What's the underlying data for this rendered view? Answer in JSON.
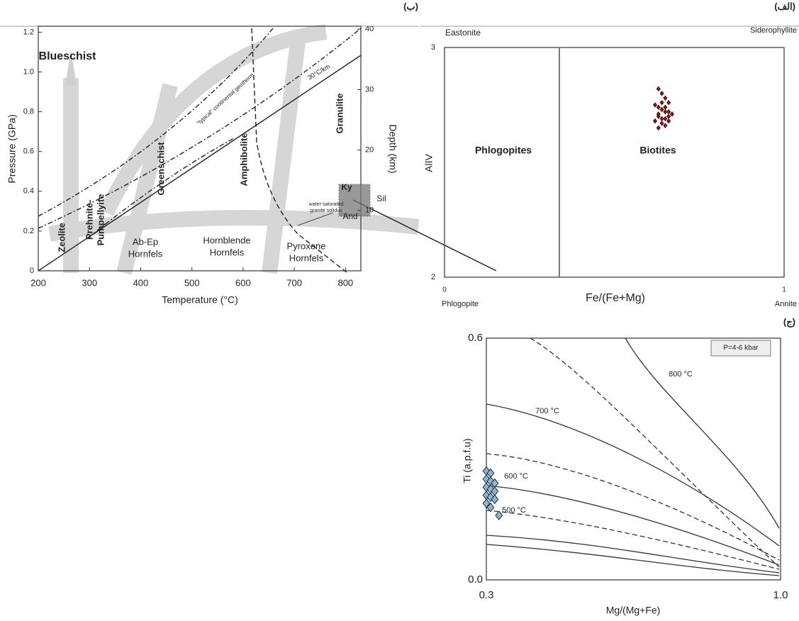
{
  "chart_data": [
    {
      "type": "scatter",
      "panel_label": "(ب)",
      "x_label": "Temperature (°C)",
      "y_label": "Pressure (GPa)",
      "y2_label": "Depth (km)",
      "xlim": [
        200,
        830
      ],
      "ylim": [
        0,
        1.23
      ],
      "y2lim": [
        0,
        40.5
      ],
      "xticks": [
        200,
        300,
        400,
        500,
        600,
        700,
        800
      ],
      "yticks": [
        0,
        0.2,
        0.4,
        0.6,
        0.8,
        {
          "value": 1,
          "label": "1.0"
        },
        1.2
      ],
      "y2ticks": [
        10,
        20,
        30,
        40
      ],
      "annotations": [
        "Blueschist",
        "Zeolite",
        "Prehnite-",
        "Pumpellyite",
        "Greenschist",
        "Amphibolite",
        "Granulite",
        "Ab-Ep",
        "Hornfels",
        "Hornblende",
        "Hornfels",
        "Pyroxene",
        "Hornfels",
        "Ky",
        "Sil",
        "And",
        "\"typical\" continental geotherm",
        "30°C/km",
        "water-saturated",
        "granite solidus"
      ]
    },
    {
      "type": "scatter",
      "panel_label": "(الف)",
      "x_label": "Fe/(Fe+Mg)",
      "y_label": "AlIV",
      "xlim": [
        0,
        1
      ],
      "ylim": [
        2,
        3
      ],
      "xticks": [
        0,
        1
      ],
      "yticks": [
        2,
        3
      ],
      "annotations": [
        "Eastonite",
        "Siderophyllite",
        "Phlogopite",
        "Annite",
        "Phlogopites",
        "Biotites"
      ],
      "series": [
        {
          "color": "#8b1a1a",
          "x": [
            0.63,
            0.64,
            0.65,
            0.66,
            0.62,
            0.63,
            0.64,
            0.65,
            0.66,
            0.67,
            0.63,
            0.64,
            0.65,
            0.66,
            0.62,
            0.64,
            0.65,
            0.63,
            0.66,
            0.64,
            0.65,
            0.63
          ],
          "values": [
            2.82,
            2.8,
            2.78,
            2.76,
            2.75,
            2.74,
            2.73,
            2.72,
            2.72,
            2.71,
            2.7,
            2.69,
            2.69,
            2.68,
            2.68,
            2.67,
            2.66,
            2.65,
            2.7,
            2.76,
            2.74,
            2.71
          ]
        }
      ]
    },
    {
      "type": "scatter",
      "panel_label": "(ج)",
      "x_label": "Mg/(Mg+Fe)",
      "y_label": "Ti (a.p.f.u)",
      "xlim": [
        0.3,
        1
      ],
      "ylim": [
        0,
        0.6
      ],
      "xticks": [
        0.3,
        {
          "value": 1,
          "label": "1.0"
        }
      ],
      "yticks": [
        {
          "value": 0,
          "label": "0.0"
        },
        0.6
      ],
      "annotations": [
        "P=4-6 kbar",
        "800 °C",
        "700 °C",
        "600 °C",
        "500 °C"
      ],
      "series": [
        {
          "color": "#8fb4d0",
          "x": [
            0.3,
            0.31,
            0.3,
            0.31,
            0.32,
            0.3,
            0.31,
            0.32,
            0.3,
            0.31,
            0.32,
            0.3,
            0.31,
            0.33
          ],
          "values": [
            0.27,
            0.265,
            0.25,
            0.245,
            0.24,
            0.23,
            0.225,
            0.22,
            0.21,
            0.205,
            0.2,
            0.19,
            0.18,
            0.16
          ]
        }
      ]
    }
  ]
}
